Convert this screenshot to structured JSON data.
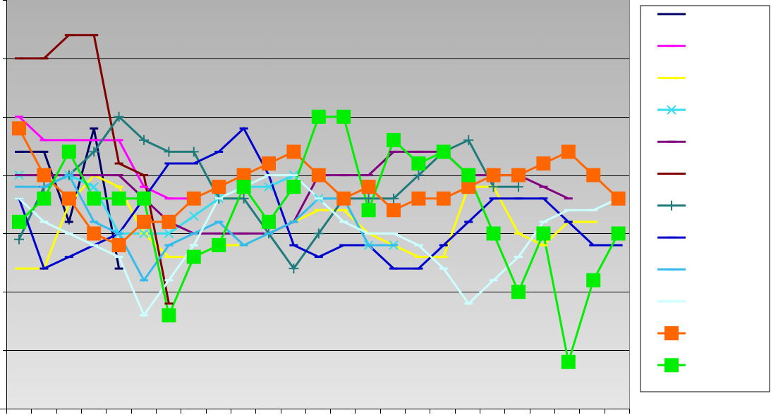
{
  "chart_data": {
    "type": "line",
    "title": "",
    "xlabel": "",
    "ylabel": "",
    "x": [
      1,
      2,
      3,
      4,
      5,
      6,
      7,
      8,
      9,
      10,
      11,
      12,
      13,
      14,
      15,
      16,
      17,
      18,
      19,
      20,
      21,
      22,
      23,
      24,
      25
    ],
    "ylim": [
      0,
      7
    ],
    "grid": true,
    "legend_position": "right",
    "series": [
      {
        "color": "#000066",
        "marker": "dash",
        "values": [
          4.4,
          4.4,
          3.2,
          4.8,
          2.4,
          null,
          null,
          null,
          null,
          null,
          null,
          null,
          null,
          null,
          null,
          null,
          null,
          null,
          null,
          null,
          null,
          null,
          null,
          null,
          null
        ]
      },
      {
        "color": "#ff00ff",
        "marker": "dash",
        "values": [
          5.0,
          4.6,
          4.6,
          4.6,
          4.6,
          3.8,
          3.6,
          3.6,
          null,
          null,
          null,
          null,
          null,
          null,
          null,
          null,
          null,
          null,
          null,
          null,
          null,
          null,
          null,
          null,
          null
        ]
      },
      {
        "color": "#ffff00",
        "marker": "dash",
        "values": [
          2.4,
          2.4,
          3.5,
          4.0,
          3.8,
          3.0,
          2.6,
          2.6,
          2.8,
          2.8,
          3.0,
          3.2,
          3.4,
          3.4,
          3.0,
          2.8,
          2.6,
          2.6,
          3.8,
          3.8,
          3.0,
          2.8,
          3.2,
          3.2,
          null
        ]
      },
      {
        "color": "#33ddee",
        "marker": "x",
        "values": [
          4.0,
          4.0,
          4.0,
          3.8,
          3.0,
          3.0,
          3.0,
          3.3,
          3.6,
          3.8,
          3.8,
          4.0,
          3.6,
          3.6,
          2.8,
          2.8,
          null,
          null,
          null,
          null,
          null,
          null,
          null,
          null,
          null
        ]
      },
      {
        "color": "#800080",
        "marker": "dash",
        "values": [
          4.0,
          4.0,
          4.0,
          4.0,
          4.0,
          3.6,
          3.2,
          3.0,
          3.0,
          3.0,
          3.0,
          3.2,
          4.0,
          4.0,
          4.0,
          4.4,
          4.4,
          4.4,
          4.0,
          4.0,
          4.0,
          3.8,
          3.6,
          null,
          null
        ]
      },
      {
        "color": "#800000",
        "marker": "dash",
        "values": [
          6.0,
          6.0,
          6.4,
          6.4,
          4.2,
          4.0,
          1.8,
          null,
          null,
          null,
          null,
          null,
          null,
          null,
          null,
          null,
          null,
          null,
          null,
          null,
          null,
          null,
          null,
          null,
          null
        ]
      },
      {
        "color": "#1f7b7b",
        "marker": "plus",
        "values": [
          2.9,
          3.8,
          4.0,
          4.4,
          5.0,
          4.6,
          4.4,
          4.4,
          3.6,
          3.6,
          3.0,
          2.4,
          3.0,
          3.6,
          3.6,
          3.6,
          4.0,
          4.4,
          4.6,
          3.8,
          3.8,
          null,
          null,
          null,
          null
        ]
      },
      {
        "color": "#0000cc",
        "marker": "dash",
        "values": [
          3.6,
          2.4,
          2.6,
          2.8,
          3.0,
          3.6,
          4.2,
          4.2,
          4.4,
          4.8,
          4.0,
          2.8,
          2.6,
          2.8,
          2.8,
          2.4,
          2.4,
          2.8,
          3.2,
          3.6,
          3.6,
          3.6,
          3.2,
          2.8,
          2.8
        ]
      },
      {
        "color": "#33bbee",
        "marker": "dash",
        "values": [
          3.8,
          3.8,
          4.0,
          3.2,
          3.0,
          2.2,
          2.8,
          3.0,
          3.2,
          2.8,
          3.0,
          3.2,
          3.6,
          3.6,
          2.8,
          2.8,
          null,
          null,
          null,
          null,
          null,
          null,
          null,
          null,
          null
        ]
      },
      {
        "color": "#ccffff",
        "marker": "dash",
        "values": [
          3.6,
          3.2,
          3.0,
          2.8,
          2.6,
          1.6,
          2.2,
          2.8,
          3.6,
          3.8,
          4.0,
          4.0,
          3.6,
          3.2,
          3.0,
          3.0,
          2.8,
          2.4,
          1.8,
          2.2,
          2.6,
          3.2,
          3.4,
          3.4,
          3.6
        ]
      },
      {
        "color": "#ff6600",
        "marker": "square",
        "values": [
          4.8,
          4.0,
          3.6,
          3.0,
          2.8,
          3.2,
          3.2,
          3.6,
          3.8,
          4.0,
          4.2,
          4.4,
          4.0,
          3.6,
          3.8,
          3.4,
          3.6,
          3.6,
          3.8,
          4.0,
          4.0,
          4.2,
          4.4,
          4.0,
          3.6
        ]
      },
      {
        "color": "#00ee00",
        "marker": "square",
        "values": [
          3.2,
          3.6,
          4.4,
          3.6,
          3.6,
          3.6,
          1.6,
          2.6,
          2.8,
          3.8,
          3.2,
          3.8,
          5.0,
          5.0,
          3.4,
          4.6,
          4.2,
          4.4,
          4.0,
          3.0,
          2.0,
          3.0,
          0.8,
          2.2,
          3.0
        ]
      }
    ]
  }
}
